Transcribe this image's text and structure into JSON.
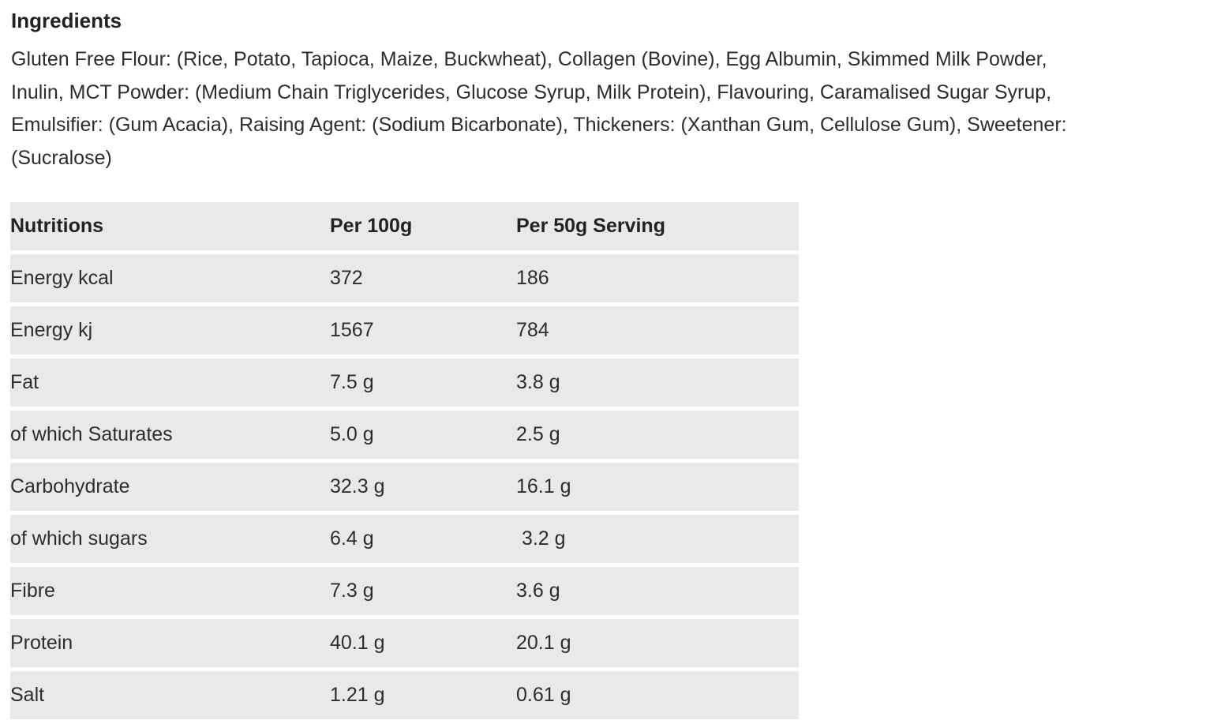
{
  "ingredients": {
    "heading": "Ingredients",
    "lines": [
      "Gluten Free Flour: (Rice, Potato, Tapioca, Maize, Buckwheat), Collagen (Bovine), Egg Albumin, Skimmed Milk Powder,",
      "Inulin, MCT Powder: (Medium Chain Triglycerides, Glucose Syrup, Milk Protein), Flavouring, Caramalised Sugar Syrup,",
      "Emulsifier: (Gum Acacia), Raising Agent: (Sodium Bicarbonate), Thickeners: (Xanthan Gum, Cellulose Gum), Sweetener:",
      "(Sucralose)"
    ]
  },
  "table": {
    "columns": [
      "Nutritions",
      "Per 100g",
      "Per 50g Serving"
    ],
    "rows": [
      {
        "label": "Energy kcal",
        "per_100g": "372",
        "per_50g": "186"
      },
      {
        "label": "Energy kj",
        "per_100g": "1567",
        "per_50g": "784"
      },
      {
        "label": "Fat",
        "per_100g": "7.5 g",
        "per_50g": "3.8 g"
      },
      {
        "label": "of which Saturates",
        "per_100g": "5.0 g",
        "per_50g": "2.5 g"
      },
      {
        "label": "Carbohydrate",
        "per_100g": "32.3 g",
        "per_50g": "16.1 g"
      },
      {
        "label": "of which sugars",
        "per_100g": "6.4 g",
        "per_50g": " 3.2 g"
      },
      {
        "label": "Fibre",
        "per_100g": "7.3 g",
        "per_50g": "3.6 g"
      },
      {
        "label": "Protein",
        "per_100g": "40.1 g",
        "per_50g": "20.1 g"
      },
      {
        "label": "Salt",
        "per_100g": "1.21 g",
        "per_50g": "0.61 g"
      }
    ]
  },
  "colors": {
    "row_background": "#e9e9e8",
    "text": "#2d2d2d",
    "heading_text": "#222222",
    "page_background": "#ffffff"
  }
}
